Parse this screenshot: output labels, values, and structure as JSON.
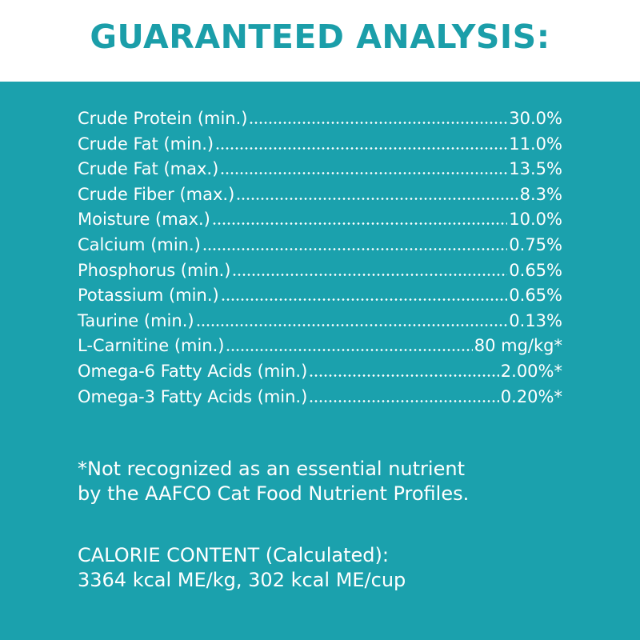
{
  "header": {
    "title": "GUARANTEED ANALYSIS:"
  },
  "analysis": {
    "rows": [
      {
        "label": "Crude Protein (min.)",
        "value": "30.0%"
      },
      {
        "label": "Crude Fat (min.)",
        "value": "11.0%"
      },
      {
        "label": "Crude Fat (max.)",
        "value": "13.5%"
      },
      {
        "label": "Crude Fiber (max.)",
        "value": "8.3%"
      },
      {
        "label": "Moisture (max.)",
        "value": "10.0%"
      },
      {
        "label": "Calcium (min.)",
        "value": "0.75%"
      },
      {
        "label": "Phosphorus (min.)",
        "value": "0.65%"
      },
      {
        "label": "Potassium (min.)",
        "value": "0.65%"
      },
      {
        "label": "Taurine (min.)",
        "value": "0.13%"
      },
      {
        "label": "L-Carnitine (min.)",
        "value": "80 mg/kg*"
      },
      {
        "label": "Omega-6 Fatty Acids (min.)",
        "value": "2.00%*"
      },
      {
        "label": "Omega-3 Fatty Acids (min.)",
        "value": "0.20%*"
      }
    ]
  },
  "footnote": {
    "lines": [
      "*Not recognized as an essential nutrient",
      "by the AAFCO Cat Food Nutrient Profiles."
    ]
  },
  "calorie": {
    "lines": [
      "CALORIE CONTENT (Calculated):",
      "3364 kcal ME/kg, 302 kcal ME/cup"
    ]
  }
}
